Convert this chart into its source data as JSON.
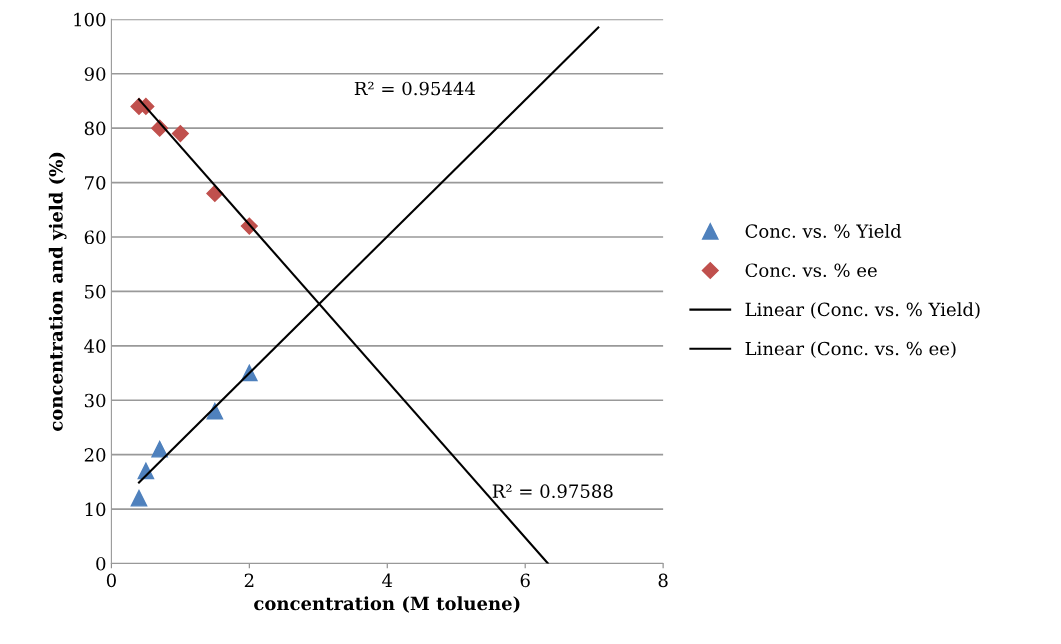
{
  "chart_data": {
    "type": "scatter",
    "xlabel": "concentration (M toluene)",
    "ylabel": "concentration and yield (%)",
    "xlim": [
      0,
      8
    ],
    "xticks": [
      0,
      2,
      4,
      6,
      8
    ],
    "ylim": [
      0,
      100
    ],
    "yticks": [
      0,
      10,
      20,
      30,
      40,
      50,
      60,
      70,
      80,
      90,
      100
    ],
    "grid": "y",
    "legend": "right",
    "series": [
      {
        "name": "Conc. vs. % Yield",
        "marker": "triangle",
        "color": "#4f81bd",
        "x": [
          0.4,
          0.5,
          0.7,
          1.5,
          2.0
        ],
        "values": [
          12,
          17,
          21,
          28,
          35
        ]
      },
      {
        "name": "Conc. vs. % ee",
        "marker": "diamond",
        "color": "#c0504d",
        "x": [
          0.4,
          0.5,
          0.7,
          1.0,
          1.5,
          2.0
        ],
        "values": [
          84,
          84,
          80,
          79,
          68,
          62
        ]
      },
      {
        "name": "Linear (Conc. vs. % Yield)",
        "type": "line",
        "marker": "none",
        "line_style": "solid",
        "color": "#000000",
        "x": [
          0.4,
          7.06
        ],
        "values": [
          14.9,
          98.5
        ]
      },
      {
        "name": "Linear (Conc. vs. % ee)",
        "type": "line",
        "marker": "none",
        "line_style": "solid",
        "color": "#000000",
        "x": [
          0.4,
          6.33
        ],
        "values": [
          85.3,
          0
        ]
      }
    ],
    "annotations": [
      "R² = 0.95444",
      "R² = 0.97588"
    ]
  }
}
